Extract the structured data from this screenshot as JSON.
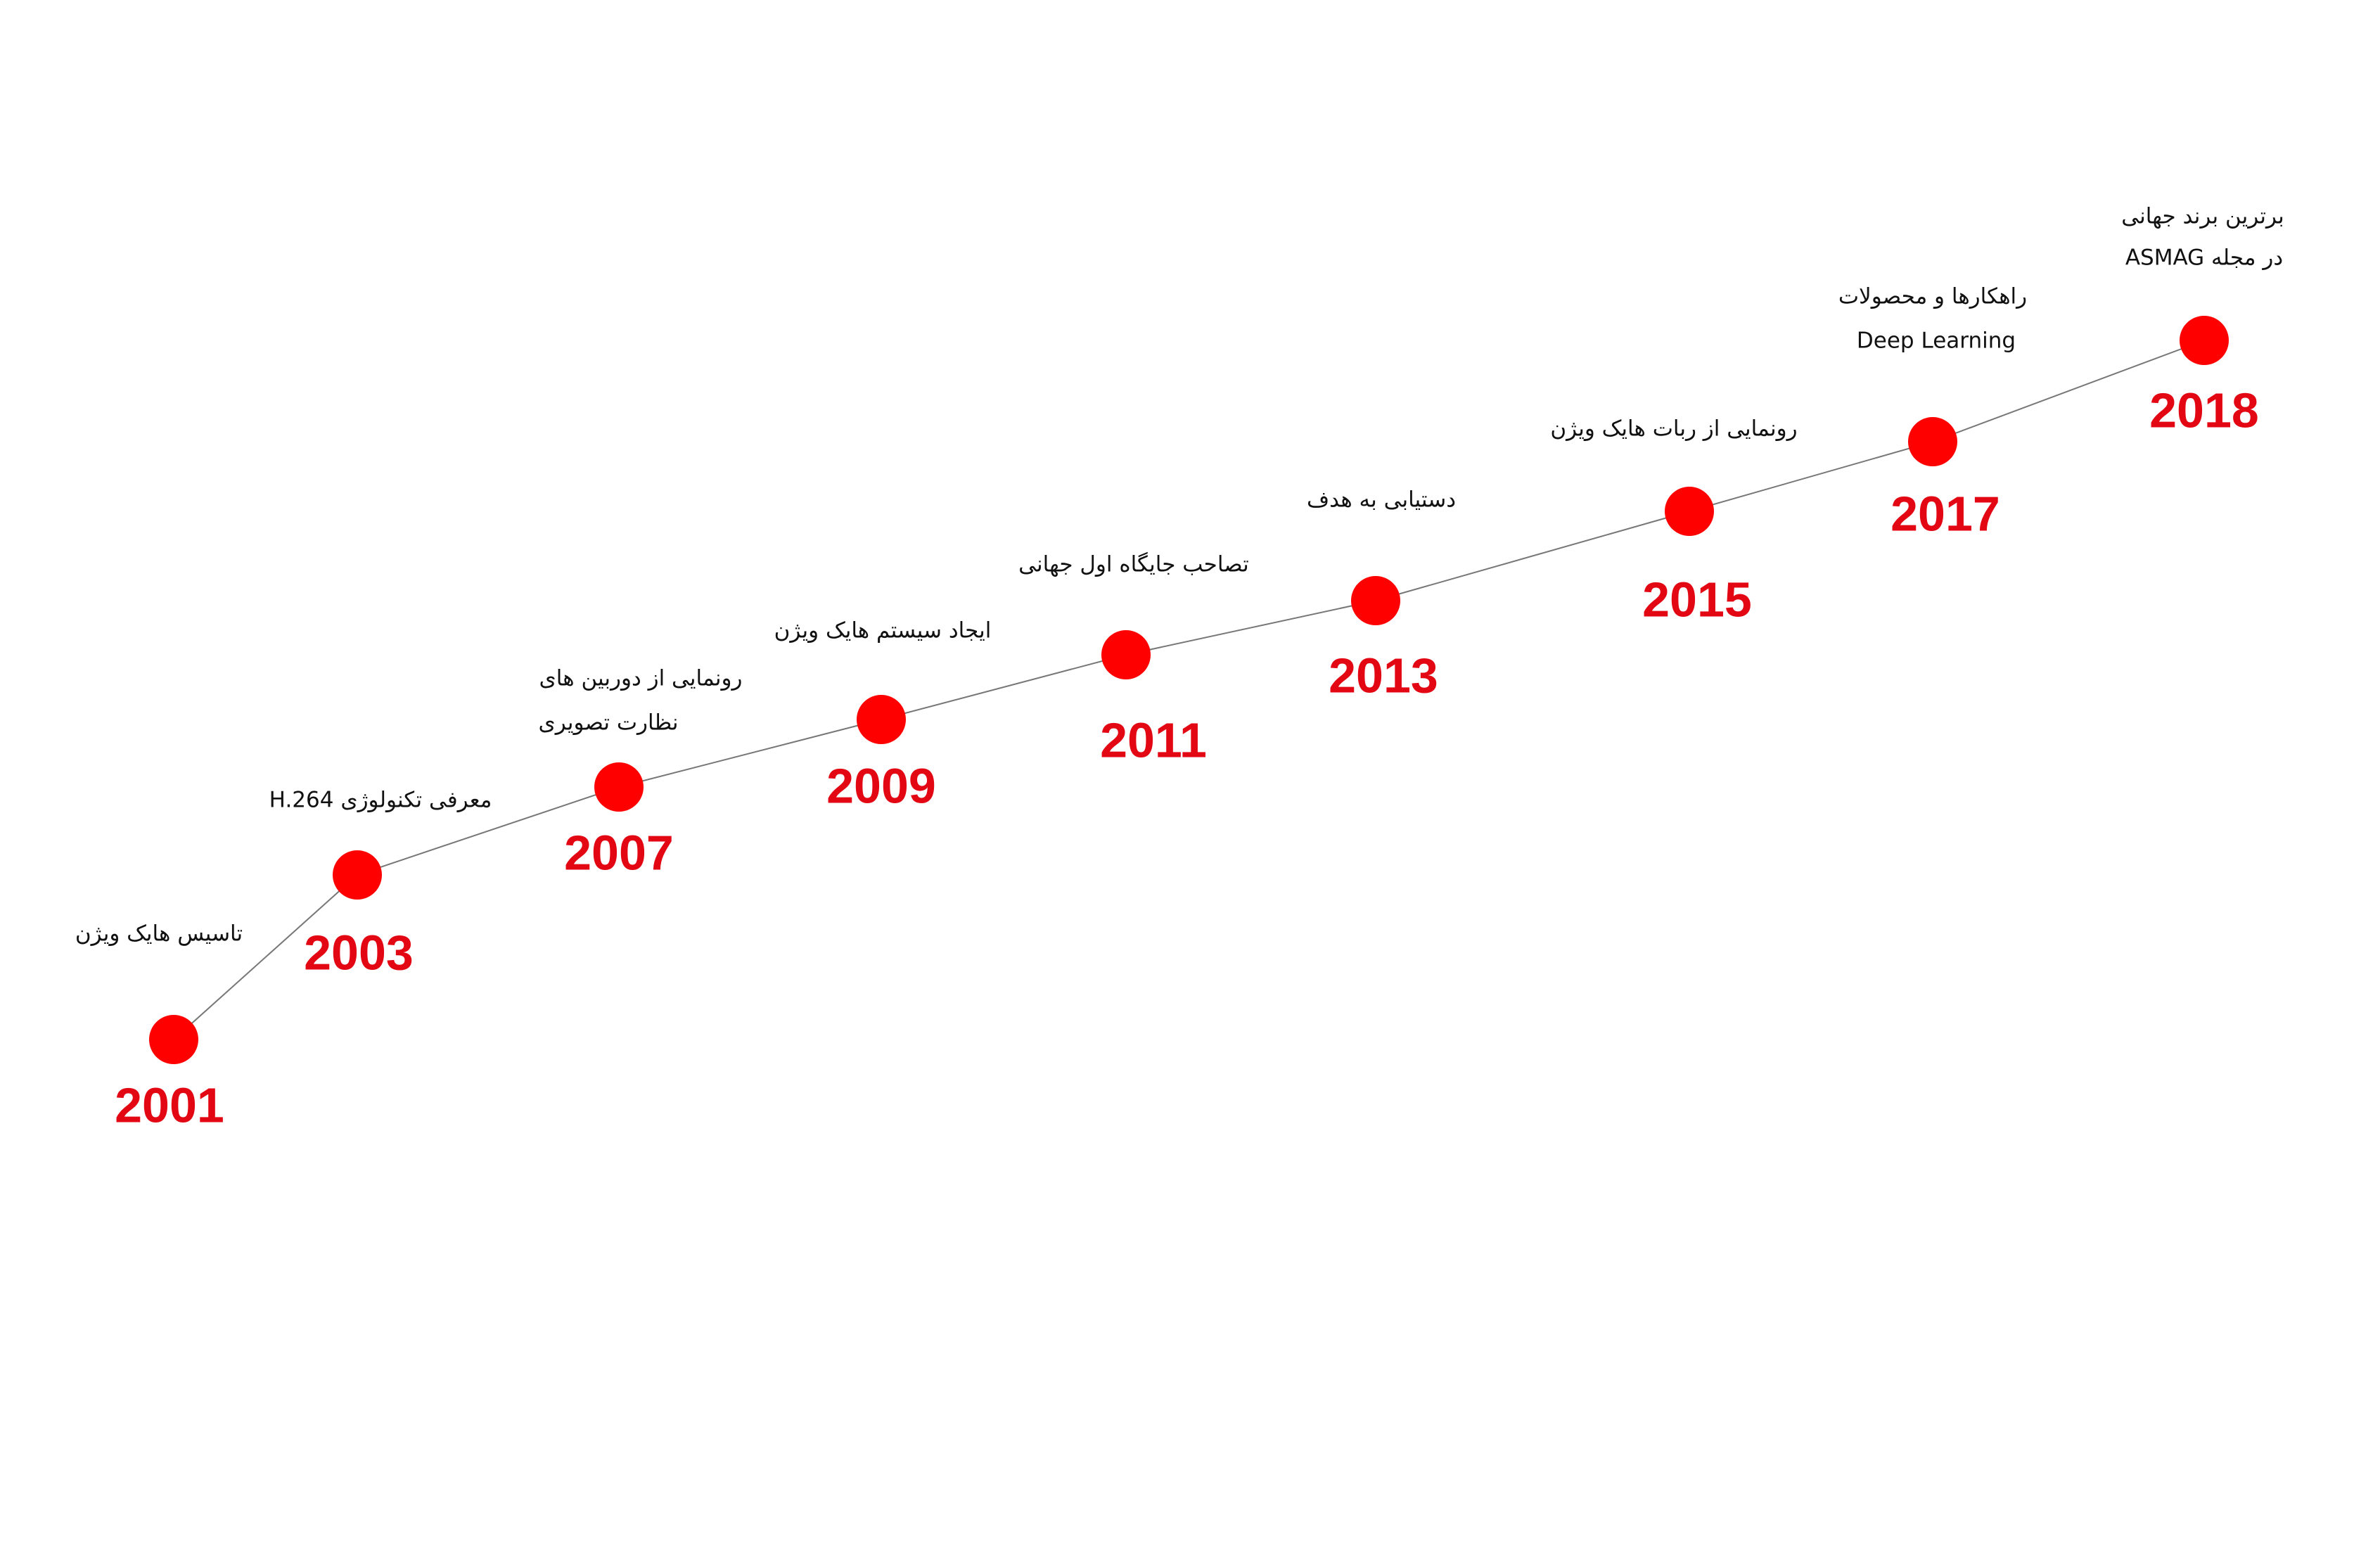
{
  "timeline": {
    "events": [
      {
        "year": "2001",
        "lines": [
          "تاسیس هایک ویژن"
        ]
      },
      {
        "year": "2003",
        "lines": [
          "معرفی تکنولوژی H.264"
        ]
      },
      {
        "year": "2007",
        "lines": [
          "رونمایی از دوربین های",
          "نظارت تصویری"
        ]
      },
      {
        "year": "2009",
        "lines": [
          "ایجاد سیستم هایک ویژن"
        ]
      },
      {
        "year": "2011",
        "lines": [
          "تصاحب جایگاه اول جهانی"
        ]
      },
      {
        "year": "2013",
        "lines": [
          "دستیابی به هدف"
        ]
      },
      {
        "year": "2015",
        "lines": [
          "رونمایی از ربات هایک ویژن"
        ]
      },
      {
        "year": "2017",
        "lines": [
          "راهکارها و محصولات",
          "Deep Learning"
        ]
      },
      {
        "year": "2018",
        "lines": [
          "برترین برند جهانی",
          "در مجله ASMAG"
        ]
      }
    ]
  }
}
